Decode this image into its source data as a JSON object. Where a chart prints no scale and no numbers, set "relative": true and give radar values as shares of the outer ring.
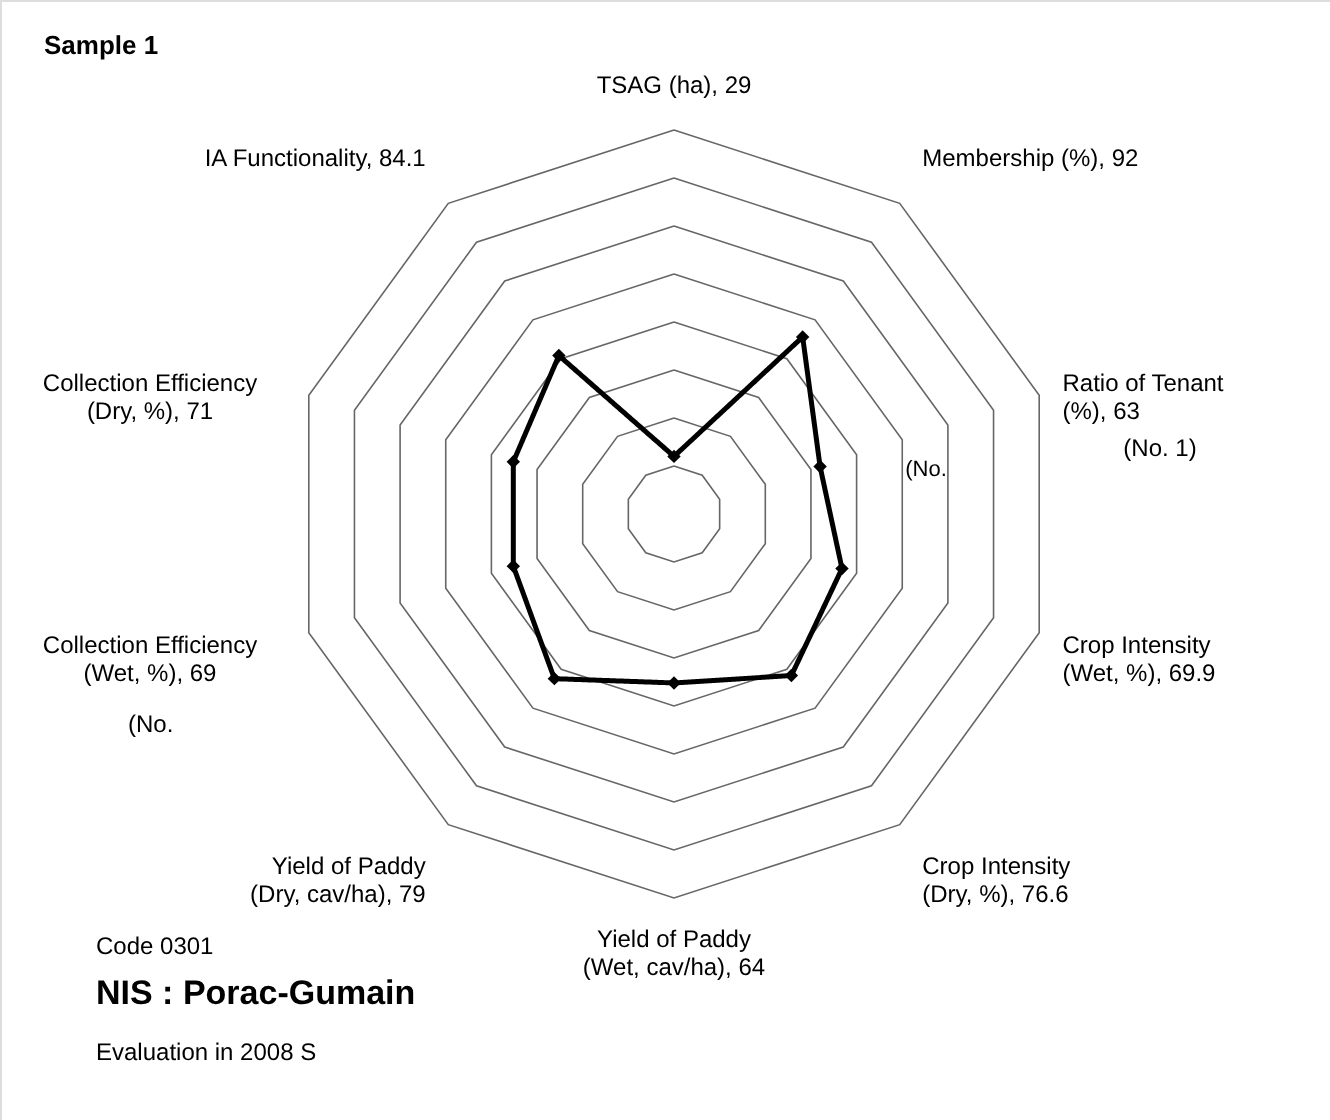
{
  "chart_data": {
    "type": "radar",
    "title": "Sample 1",
    "categories": [
      "TSAG (ha), 29",
      "Membership (%), 92",
      "Ratio of Tenant (%), 63",
      "Crop Intensity (Wet, %), 69.9",
      "Crop Intensity (Dry, %), 76.6",
      "Yield of Paddy (Wet, cav/ha), 64",
      "Yield of Paddy (Dry, cav/ha), 79",
      "Collection Efficiency (Wet, %), 69",
      "Collection Efficiency (Dry, %), 71",
      "IA Functionality, 84.1"
    ],
    "relative": true,
    "series": [
      {
        "color": "#000000",
        "values": [
          0.15,
          0.57,
          0.4,
          0.46,
          0.52,
          0.44,
          0.53,
          0.44,
          0.44,
          0.51
        ]
      }
    ],
    "marker": "diamond",
    "line_style": "solid",
    "grid": true,
    "annotations": [
      "(No. 1)",
      "(No.",
      "(No.",
      "Code 0301",
      "NIS : Porac-Gumain",
      "Evaluation in 2008 S"
    ]
  }
}
